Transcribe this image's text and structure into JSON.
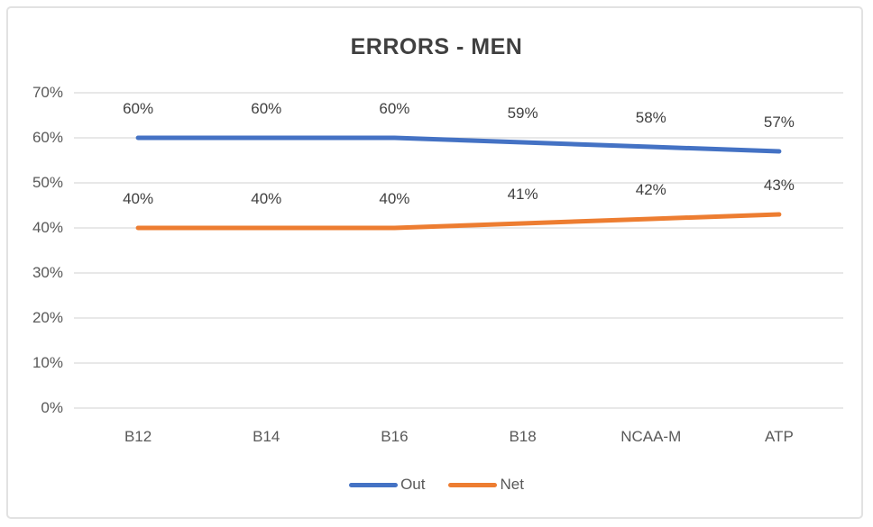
{
  "chart_data": {
    "type": "line",
    "title": "ERRORS - MEN",
    "categories": [
      "B12",
      "B14",
      "B16",
      "B18",
      "NCAA-M",
      "ATP"
    ],
    "series": [
      {
        "name": "Out",
        "color": "#4472C4",
        "values": [
          60,
          60,
          60,
          59,
          58,
          57
        ],
        "data_labels": [
          "60%",
          "60%",
          "60%",
          "59%",
          "58%",
          "57%"
        ]
      },
      {
        "name": "Net",
        "color": "#ED7D31",
        "values": [
          40,
          40,
          40,
          41,
          42,
          43
        ],
        "data_labels": [
          "40%",
          "40%",
          "40%",
          "41%",
          "42%",
          "43%"
        ]
      }
    ],
    "y_axis": {
      "min": 0,
      "max": 70,
      "step": 10,
      "tick_labels": [
        "0%",
        "10%",
        "20%",
        "30%",
        "40%",
        "50%",
        "60%",
        "70%"
      ]
    },
    "xlabel": "",
    "ylabel": "",
    "grid": true,
    "legend_position": "bottom",
    "colors": {
      "gridline": "#d9d9d9",
      "frame_border": "#e2e2e2",
      "title_text": "#404040",
      "axis_text": "#595959",
      "data_label_text": "#404040"
    }
  }
}
